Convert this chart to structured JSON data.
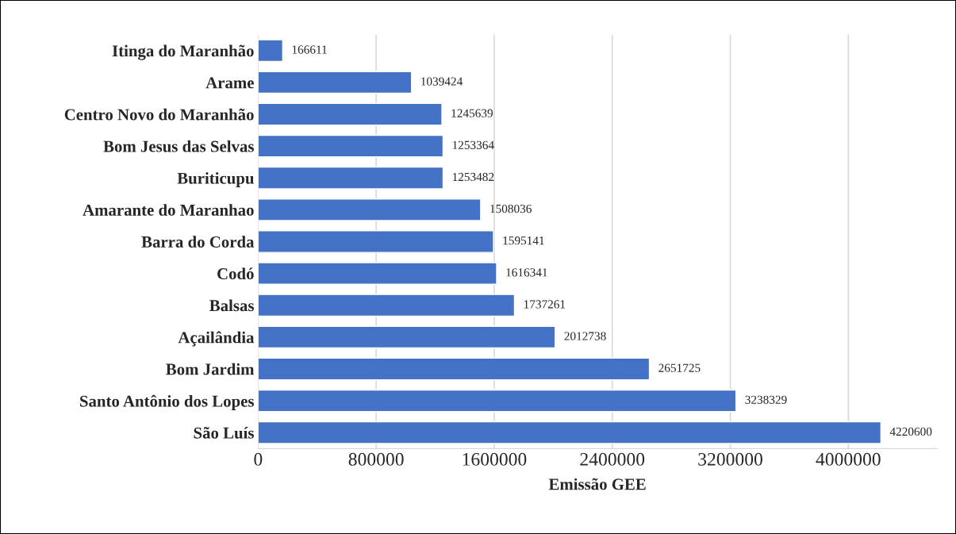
{
  "chart_data": {
    "type": "bar",
    "orientation": "horizontal",
    "xlabel": "Emissão GEE",
    "categories": [
      "Itinga do Maranhão",
      "Arame",
      "Centro Novo do Maranhão",
      "Bom Jesus das Selvas",
      "Buriticupu",
      "Amarante do Maranhao",
      "Barra do Corda",
      "Codó",
      "Balsas",
      "Açailândia",
      "Bom Jardim",
      "Santo Antônio dos Lopes",
      "São Luís"
    ],
    "values": [
      166611,
      1039424,
      1245639,
      1253364,
      1253482,
      1508036,
      1595141,
      1616341,
      1737261,
      2012738,
      2651725,
      3238329,
      4220600
    ],
    "color": "#4472c4",
    "xlim": [
      0,
      4600000
    ],
    "xticks": [
      0,
      800000,
      1600000,
      2400000,
      3200000,
      4000000
    ],
    "grid": "x",
    "data_labels": true,
    "legend": false
  }
}
